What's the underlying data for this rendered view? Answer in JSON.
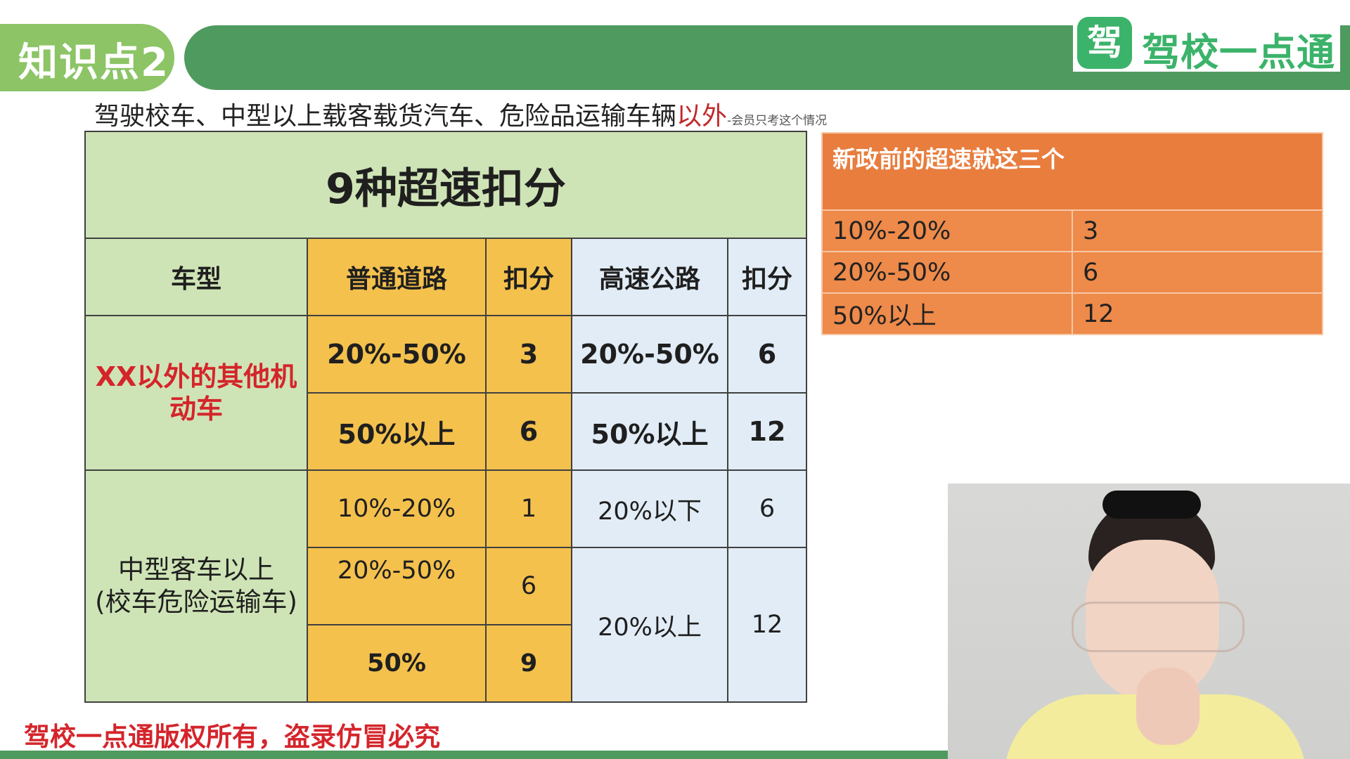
{
  "header": {
    "badge": "知识点2",
    "logo_mark": "驾",
    "logo_text": "驾校一点通"
  },
  "subtitle": {
    "main": "驾驶校车、中型以上载客载货汽车、危险品运输车辆",
    "red": "以外",
    "small": "-会员只考这个情况"
  },
  "main_table": {
    "title": "9种超速扣分",
    "headers": {
      "vehicle": "车型",
      "ordinary_road": "普通道路",
      "points_1": "扣分",
      "highway": "高速公路",
      "points_2": "扣分"
    },
    "group1": {
      "label": "XX以外的其他机动车",
      "rows": [
        {
          "road": "20%-50%",
          "pts": "3",
          "hw": "20%-50%",
          "hw_pts": "6"
        },
        {
          "road": "50%以上",
          "pts": "6",
          "hw": "50%以上",
          "hw_pts": "12"
        }
      ]
    },
    "group2": {
      "label_line1": "中型客车以上",
      "label_line2": "(校车危险运输车)",
      "rows": [
        {
          "road": "10%-20%",
          "pts": "1",
          "hw": "20%以下",
          "hw_pts": "6"
        },
        {
          "road": "20%-50%",
          "pts": "6"
        },
        {
          "road": "50%",
          "pts": "9"
        }
      ],
      "hw_merged": "20%以上",
      "hw_merged_pts": "12"
    }
  },
  "side_table": {
    "title": "新政前的超速就这三个",
    "rows": [
      {
        "range": "10%-20%",
        "pts": "3"
      },
      {
        "range": "20%-50%",
        "pts": "6"
      },
      {
        "range": "50%以上",
        "pts": "12"
      }
    ]
  },
  "footer": {
    "copyright": "驾校一点通版权所有，盗录仿冒必究"
  }
}
